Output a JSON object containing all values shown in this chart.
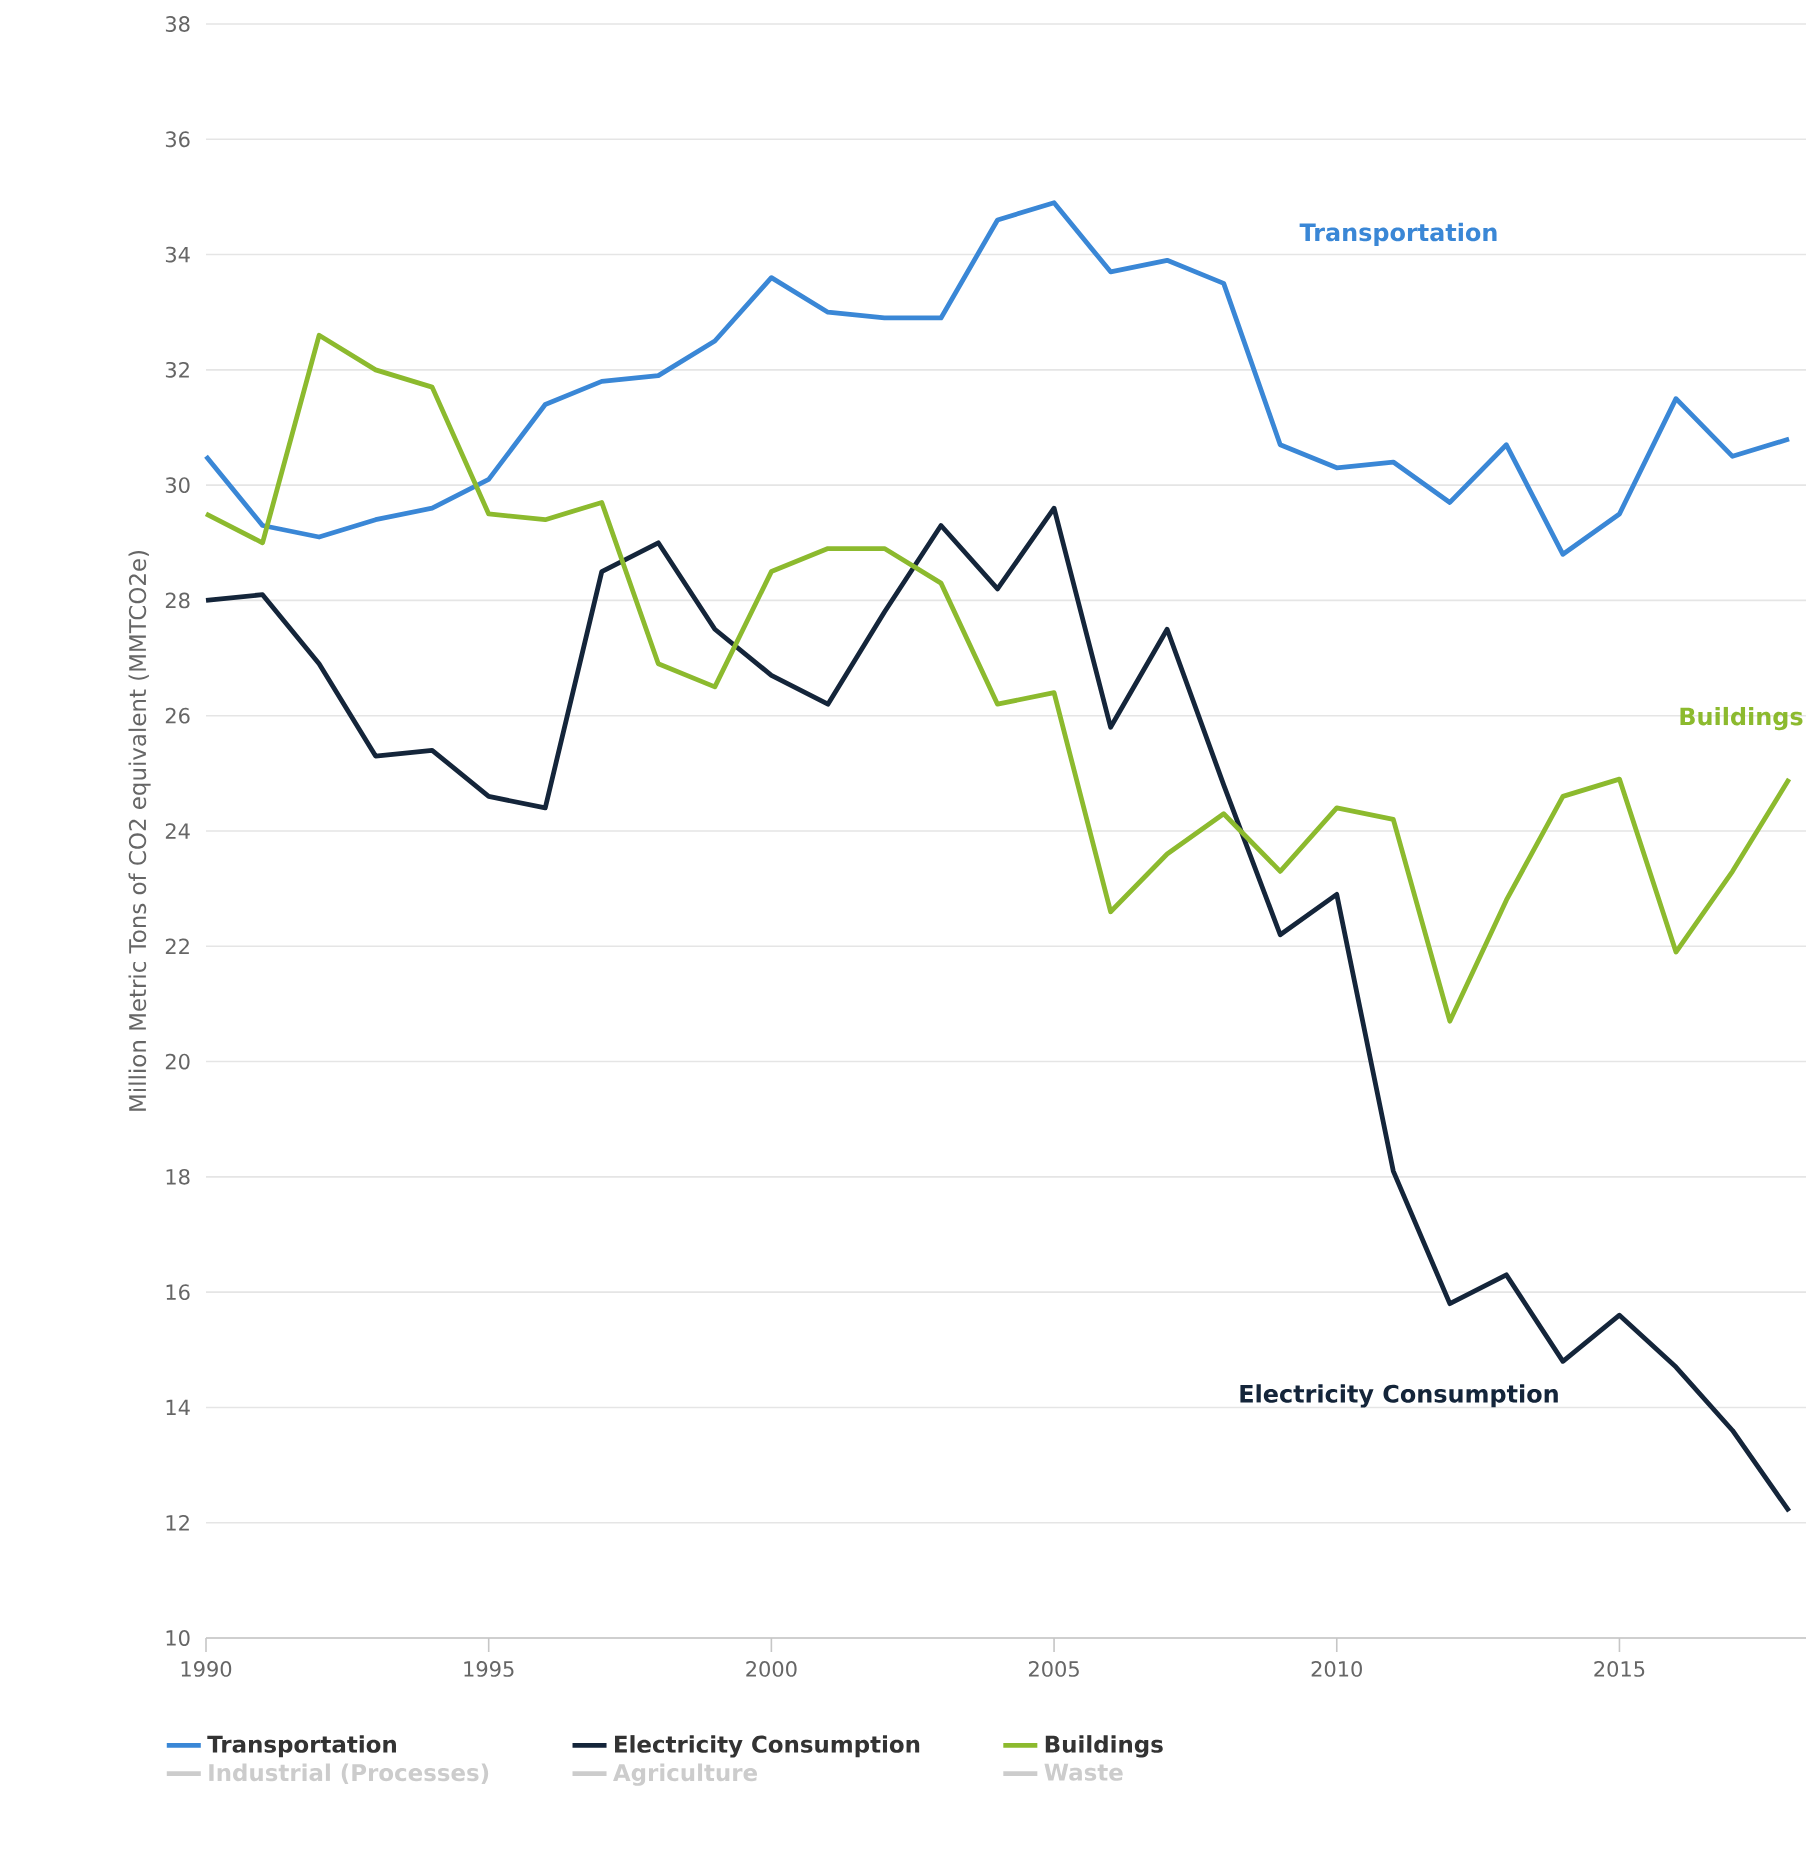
{
  "chart_data": {
    "type": "line",
    "ylabel": "Million Metric Tons of CO2 equivalent (MMTCO2e)",
    "x": [
      1990,
      1991,
      1992,
      1993,
      1994,
      1995,
      1996,
      1997,
      1998,
      1999,
      2000,
      2001,
      2002,
      2003,
      2004,
      2005,
      2006,
      2007,
      2008,
      2009,
      2010,
      2011,
      2012,
      2013,
      2014,
      2015,
      2016,
      2017,
      2018
    ],
    "xlim": [
      1990,
      2018.3
    ],
    "xticks": [
      1990,
      1995,
      2000,
      2005,
      2010,
      2015
    ],
    "ylim": [
      10,
      38
    ],
    "yticks": [
      10,
      12,
      14,
      16,
      18,
      20,
      22,
      24,
      26,
      28,
      30,
      32,
      34,
      36,
      38
    ],
    "grid": "y",
    "legend": "bottom",
    "series": [
      {
        "name": "Transportation",
        "color": "#3a87d6",
        "values": [
          30.5,
          29.3,
          29.1,
          29.4,
          29.6,
          30.1,
          31.4,
          31.8,
          31.9,
          32.5,
          33.6,
          33.0,
          32.9,
          32.9,
          34.6,
          34.9,
          33.7,
          33.9,
          33.5,
          30.7,
          30.3,
          30.4,
          29.7,
          30.7,
          28.8,
          29.5,
          31.5,
          30.5,
          30.8
        ]
      },
      {
        "name": "Electricity Consumption",
        "color": "#14253a",
        "values": [
          28.0,
          28.1,
          26.9,
          25.3,
          25.4,
          24.6,
          24.4,
          28.5,
          29.0,
          27.5,
          26.7,
          26.2,
          27.8,
          29.3,
          28.2,
          29.6,
          25.8,
          27.5,
          24.8,
          22.2,
          22.9,
          18.1,
          15.8,
          16.3,
          14.8,
          15.6,
          14.7,
          13.6,
          12.2
        ]
      },
      {
        "name": "Buildings",
        "color": "#8cba2e",
        "values": [
          29.5,
          29.0,
          32.6,
          32.0,
          31.7,
          29.5,
          29.4,
          29.7,
          26.9,
          26.5,
          28.5,
          28.9,
          28.9,
          28.3,
          26.2,
          26.4,
          22.6,
          23.6,
          24.3,
          23.3,
          24.4,
          24.2,
          20.7,
          22.8,
          24.6,
          24.9,
          21.9,
          23.3,
          24.9
        ]
      },
      {
        "name": "Industrial (Processes)",
        "color": "#cccccc",
        "values": [
          null,
          null,
          null,
          null,
          null,
          null,
          null,
          null,
          null,
          null,
          null,
          null,
          null,
          null,
          null,
          null,
          null,
          null,
          null,
          null,
          null,
          null,
          null,
          null,
          null,
          null,
          null,
          null,
          null
        ]
      },
      {
        "name": "Agriculture",
        "color": "#cccccc",
        "values": [
          null,
          null,
          null,
          null,
          null,
          null,
          null,
          null,
          null,
          null,
          null,
          null,
          null,
          null,
          null,
          null,
          null,
          null,
          null,
          null,
          null,
          null,
          null,
          null,
          null,
          null,
          null,
          null,
          null
        ]
      },
      {
        "name": "Waste",
        "color": "#cccccc",
        "values": [
          null,
          null,
          null,
          null,
          null,
          null,
          null,
          null,
          null,
          null,
          null,
          null,
          null,
          null,
          null,
          null,
          null,
          null,
          null,
          null,
          null,
          null,
          null,
          null,
          null,
          null,
          null,
          null,
          null
        ]
      }
    ]
  }
}
